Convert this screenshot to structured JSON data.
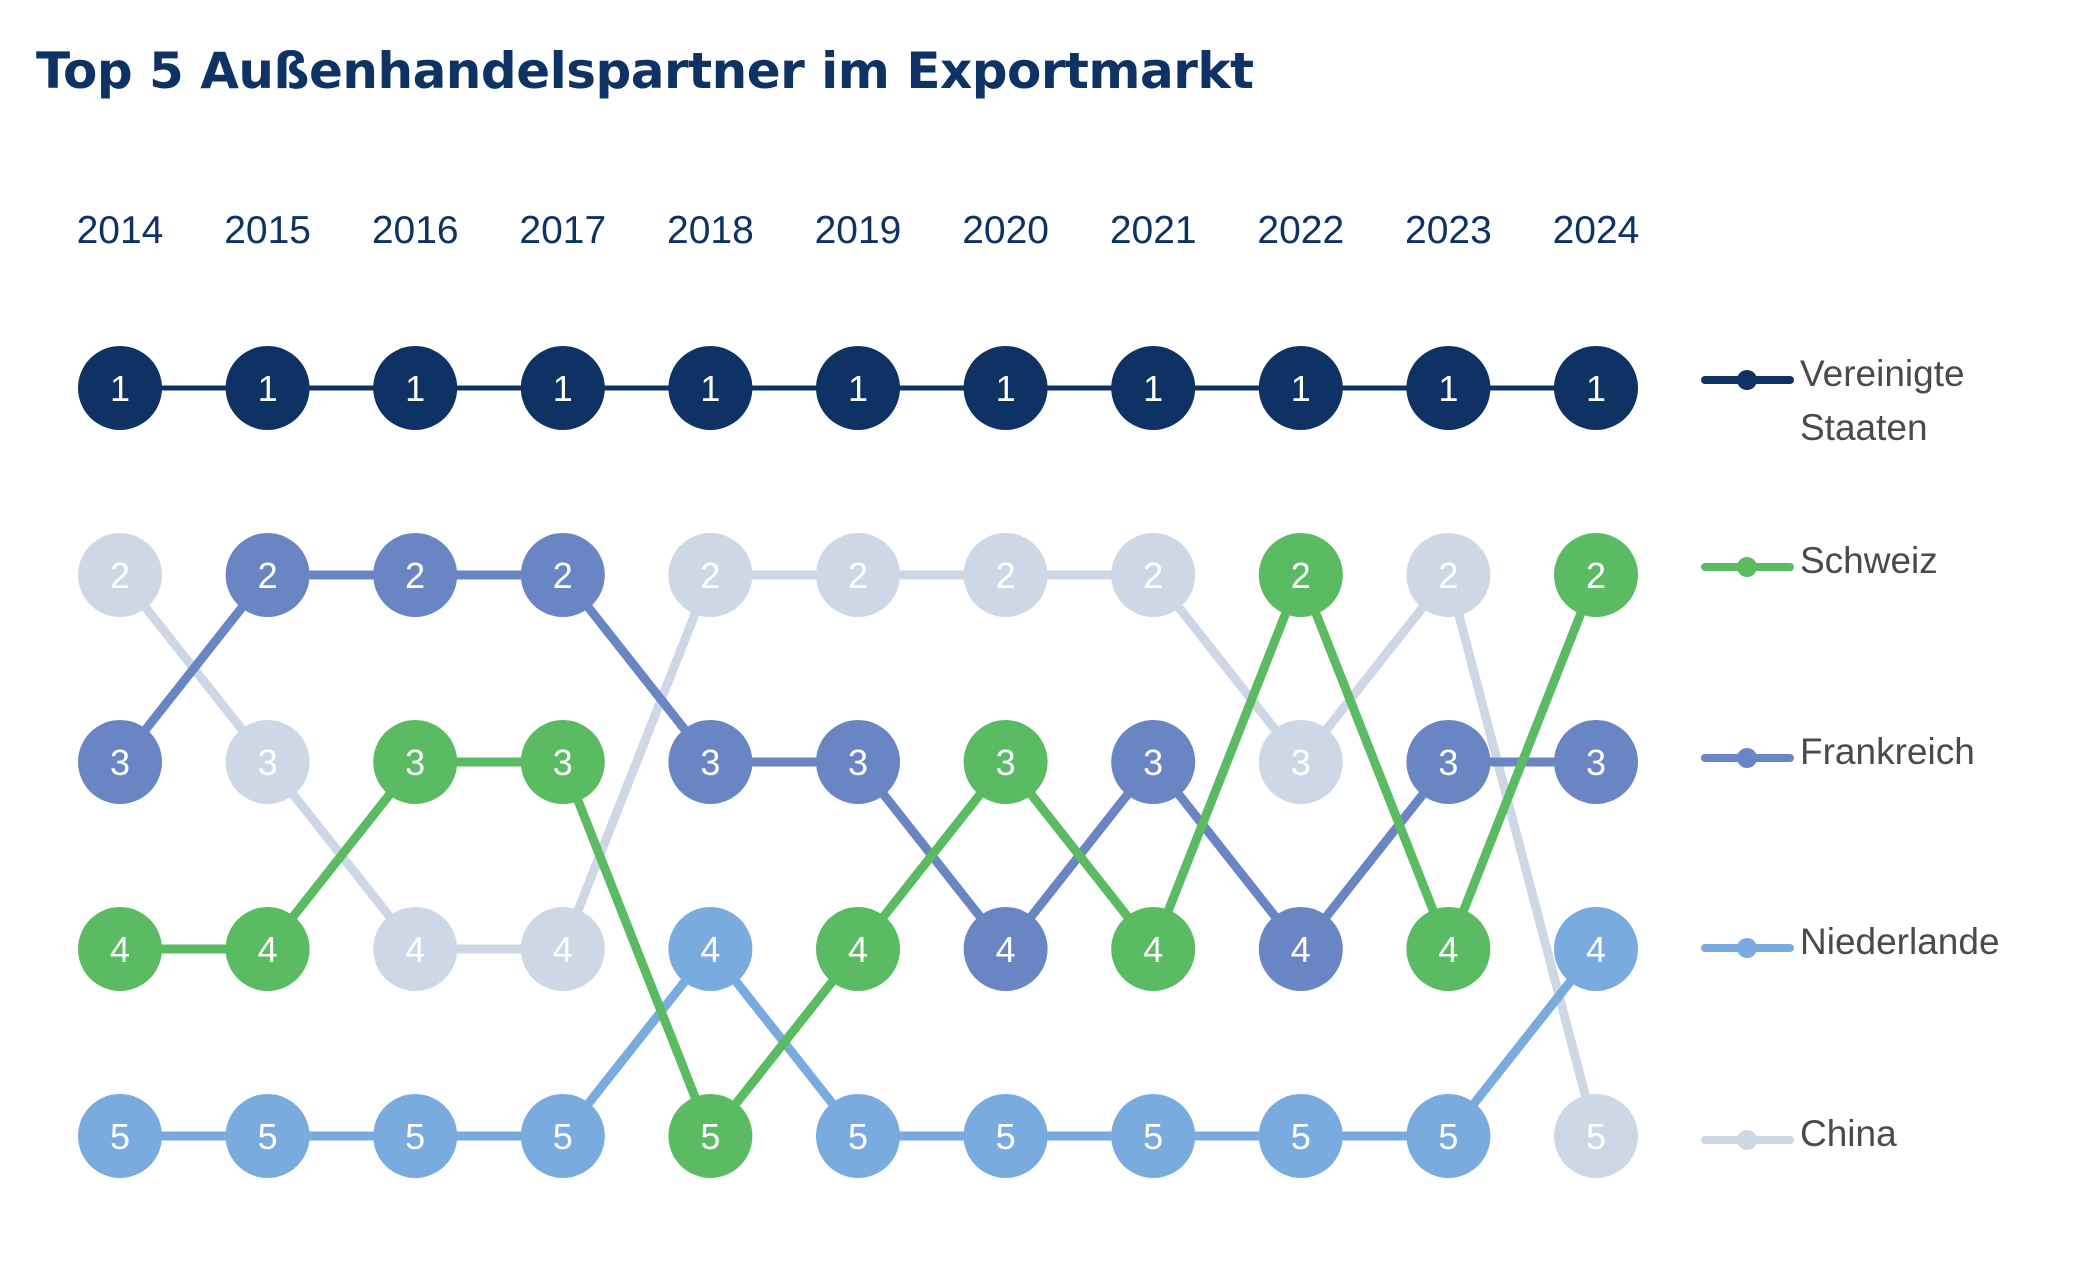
{
  "title": "Top 5 Außenhandelspartner im Exportmarkt",
  "chart_data": {
    "type": "bump",
    "title": "Top 5 Außenhandelspartner im Exportmarkt",
    "years": [
      "2014",
      "2015",
      "2016",
      "2017",
      "2018",
      "2019",
      "2020",
      "2021",
      "2022",
      "2023",
      "2024"
    ],
    "rank_direction": "1 at top, 5 at bottom",
    "series": [
      {
        "name": "Vereinigte Staaten",
        "legend_lines": [
          "Vereinigte",
          "Staaten"
        ],
        "color": "#0d3263",
        "ranks": [
          1,
          1,
          1,
          1,
          1,
          1,
          1,
          1,
          1,
          1,
          1
        ]
      },
      {
        "name": "Schweiz",
        "legend_lines": [
          "Schweiz"
        ],
        "color": "#5abb63",
        "ranks": [
          4,
          4,
          3,
          3,
          5,
          4,
          3,
          4,
          2,
          4,
          2
        ]
      },
      {
        "name": "Frankreich",
        "legend_lines": [
          "Frankreich"
        ],
        "color": "#6a85c3",
        "ranks": [
          3,
          2,
          2,
          2,
          3,
          3,
          4,
          3,
          4,
          3,
          3
        ]
      },
      {
        "name": "Niederlande",
        "legend_lines": [
          "Niederlande"
        ],
        "color": "#7aabdf",
        "ranks": [
          5,
          5,
          5,
          5,
          4,
          5,
          5,
          5,
          5,
          5,
          4
        ]
      },
      {
        "name": "China",
        "legend_lines": [
          "China"
        ],
        "color": "#cdd7e6",
        "ranks": [
          2,
          3,
          4,
          4,
          2,
          2,
          2,
          2,
          3,
          2,
          5
        ]
      }
    ],
    "legend_position": "right"
  }
}
